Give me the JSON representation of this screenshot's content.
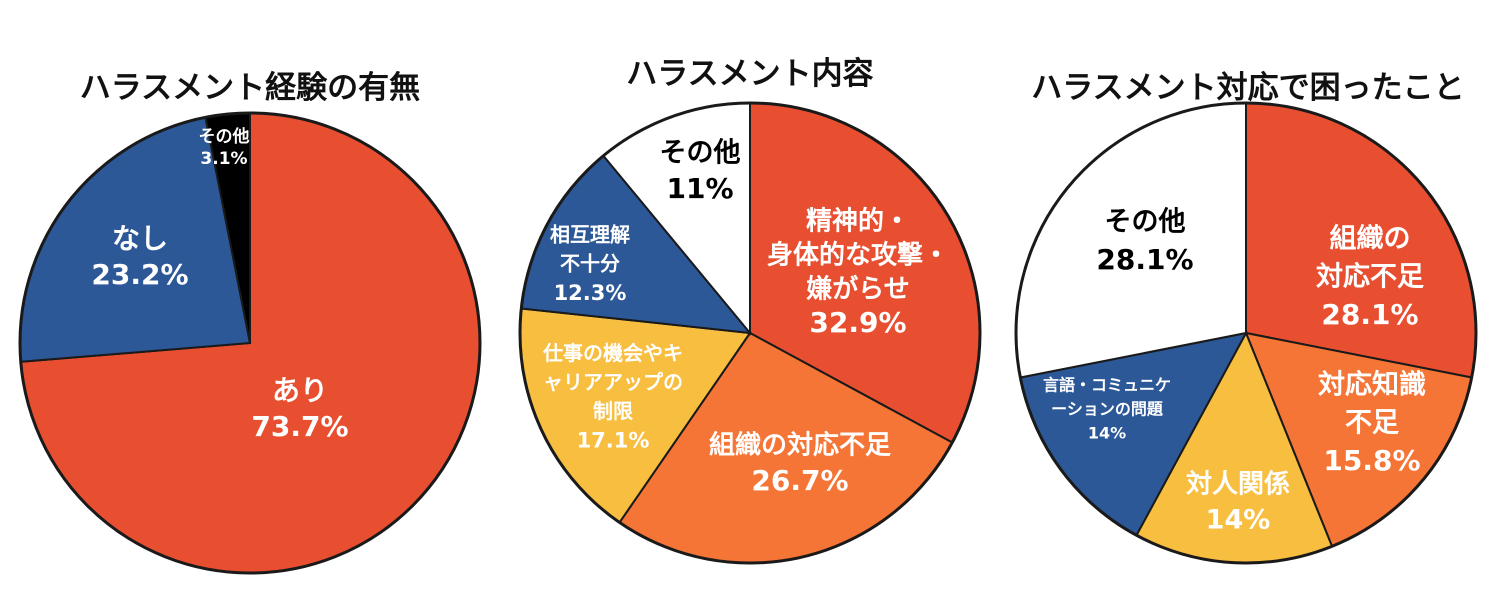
{
  "chart_data": [
    {
      "type": "pie",
      "title": "ハラスメント経験の有無",
      "series": [
        {
          "name": "あり",
          "value": 73.7,
          "label": "73.7%",
          "color": "#e84f30",
          "text_color": "#ffffff"
        },
        {
          "name": "なし",
          "value": 23.2,
          "label": "23.2%",
          "color": "#2c5897",
          "text_color": "#ffffff"
        },
        {
          "name": "その他",
          "value": 3.1,
          "label": "3.1%",
          "color": "#000000",
          "text_color": "#ffffff"
        }
      ]
    },
    {
      "type": "pie",
      "title": "ハラスメント内容",
      "series": [
        {
          "name": "精神的・\n身体的な攻撃・\n嫌がらせ",
          "value": 32.9,
          "label": "32.9%",
          "color": "#e84f30",
          "text_color": "#ffffff"
        },
        {
          "name": "組織の対応不足",
          "value": 26.7,
          "label": "26.7%",
          "color": "#f47535",
          "text_color": "#ffffff"
        },
        {
          "name": "仕事の機会やキ\nャリアアップの\n制限",
          "value": 17.1,
          "label": "17.1%",
          "color": "#f8be40",
          "text_color": "#ffffff"
        },
        {
          "name": "相互理解\n不十分",
          "value": 12.3,
          "label": "12.3%",
          "color": "#2c5897",
          "text_color": "#ffffff"
        },
        {
          "name": "その他",
          "value": 11,
          "label": "11%",
          "color": "#ffffff",
          "text_color": "#000000"
        }
      ]
    },
    {
      "type": "pie",
      "title": "ハラスメント対応で困ったこと",
      "series": [
        {
          "name": "組織の\n対応不足",
          "value": 28.1,
          "label": "28.1%",
          "color": "#e84f30",
          "text_color": "#ffffff"
        },
        {
          "name": "対応知識\n不足",
          "value": 15.8,
          "label": "15.8%",
          "color": "#f47535",
          "text_color": "#ffffff"
        },
        {
          "name": "対人関係",
          "value": 14,
          "label": "14%",
          "color": "#f8be40",
          "text_color": "#ffffff"
        },
        {
          "name": "言語・コミュニケ\nーションの問題",
          "value": 14,
          "label": "14%",
          "color": "#2c5897",
          "text_color": "#ffffff"
        },
        {
          "name": "その他",
          "value": 28.1,
          "label": "28.1%",
          "color": "#ffffff",
          "text_color": "#000000"
        }
      ]
    }
  ]
}
